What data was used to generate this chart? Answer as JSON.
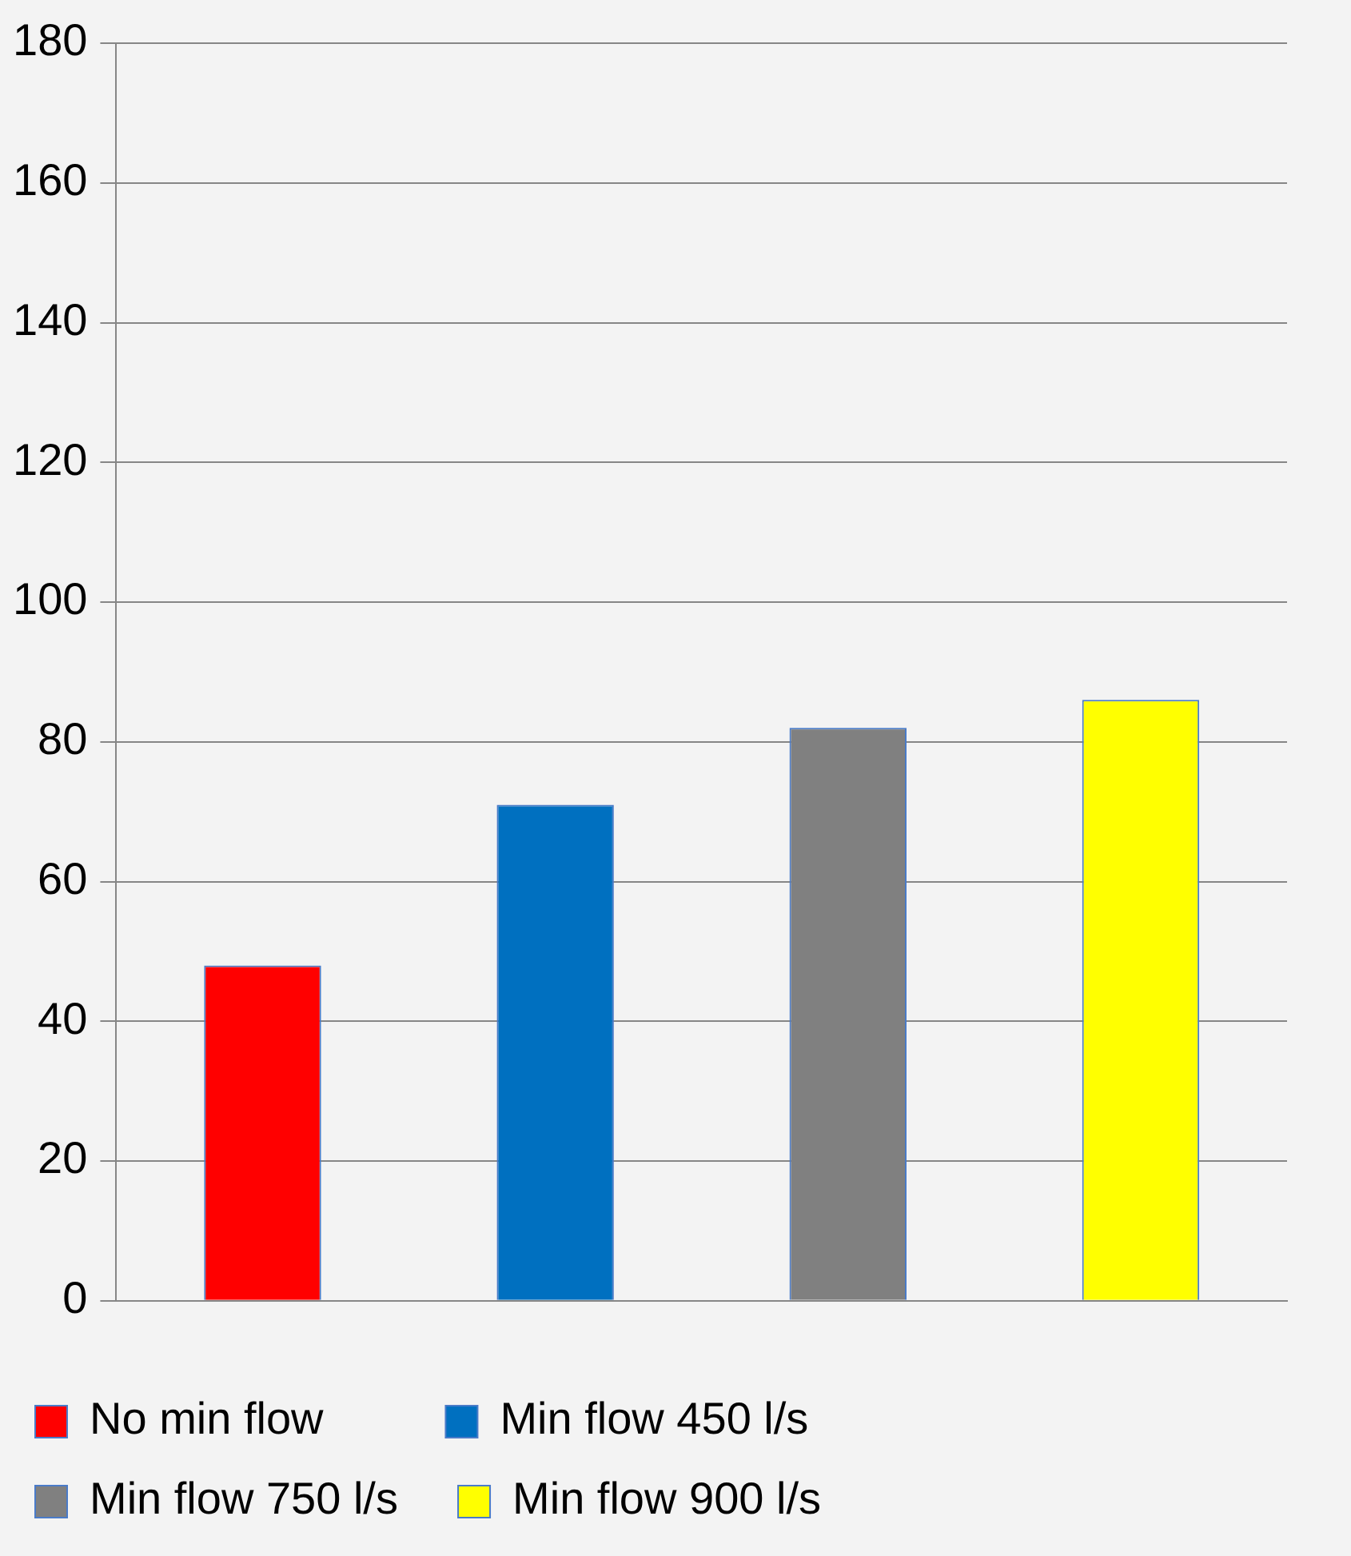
{
  "chart_data": {
    "type": "bar",
    "categories": [
      null,
      null,
      null,
      null
    ],
    "series": [
      {
        "name": "No min flow",
        "color": "#ff0000",
        "values": [
          48,
          null,
          null,
          null
        ]
      },
      {
        "name": "Min flow 450 l/s",
        "color": "#0070c0",
        "values": [
          null,
          71,
          null,
          null
        ]
      },
      {
        "name": "Min flow 750 l/s",
        "color": "#808080",
        "values": [
          null,
          null,
          82,
          null
        ]
      },
      {
        "name": "Min flow 900 l/s",
        "color": "#ffff00",
        "values": [
          null,
          null,
          null,
          86
        ]
      }
    ],
    "ylim": [
      0,
      180
    ],
    "yticks": [
      0,
      20,
      40,
      60,
      80,
      100,
      120,
      140,
      160,
      180
    ],
    "grid": "y",
    "legend": "bottom"
  }
}
